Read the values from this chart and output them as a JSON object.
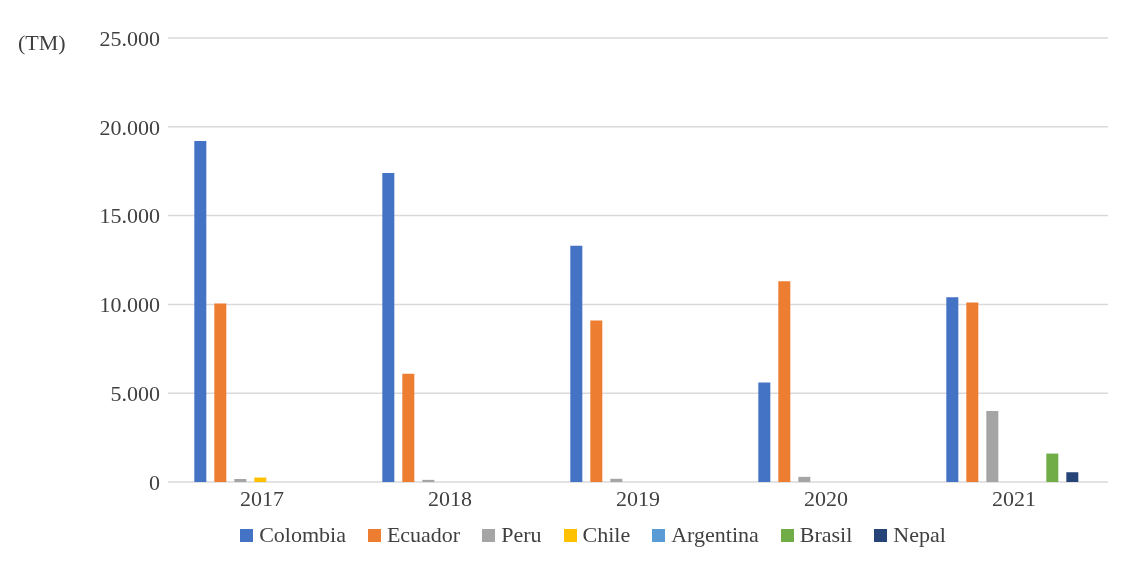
{
  "chart_data": {
    "type": "bar",
    "ylabel": "(TM)",
    "categories": [
      "2017",
      "2018",
      "2019",
      "2020",
      "2021"
    ],
    "series": [
      {
        "name": "Colombia",
        "color": "#4472c4",
        "values": [
          19200,
          17400,
          13300,
          5600,
          10400
        ]
      },
      {
        "name": "Ecuador",
        "color": "#ed7d31",
        "values": [
          10050,
          6100,
          9100,
          11300,
          10100
        ]
      },
      {
        "name": "Peru",
        "color": "#a5a5a5",
        "values": [
          170,
          120,
          180,
          290,
          4000
        ]
      },
      {
        "name": "Chile",
        "color": "#ffc000",
        "values": [
          250,
          0,
          0,
          0,
          0
        ]
      },
      {
        "name": "Argentina",
        "color": "#5b9bd5",
        "values": [
          0,
          0,
          0,
          0,
          0
        ]
      },
      {
        "name": "Brasil",
        "color": "#70ad47",
        "values": [
          0,
          0,
          0,
          0,
          1600
        ]
      },
      {
        "name": "Nepal",
        "color": "#264478",
        "values": [
          0,
          0,
          0,
          0,
          550
        ]
      }
    ],
    "ylim": [
      0,
      25000
    ],
    "yticks": [
      {
        "value": 0,
        "label": "0"
      },
      {
        "value": 5000,
        "label": "5.000"
      },
      {
        "value": 10000,
        "label": "10.000"
      },
      {
        "value": 15000,
        "label": "15.000"
      },
      {
        "value": 20000,
        "label": "20.000"
      },
      {
        "value": 25000,
        "label": "25.000"
      }
    ],
    "grid": "y",
    "legend": "bottom"
  }
}
